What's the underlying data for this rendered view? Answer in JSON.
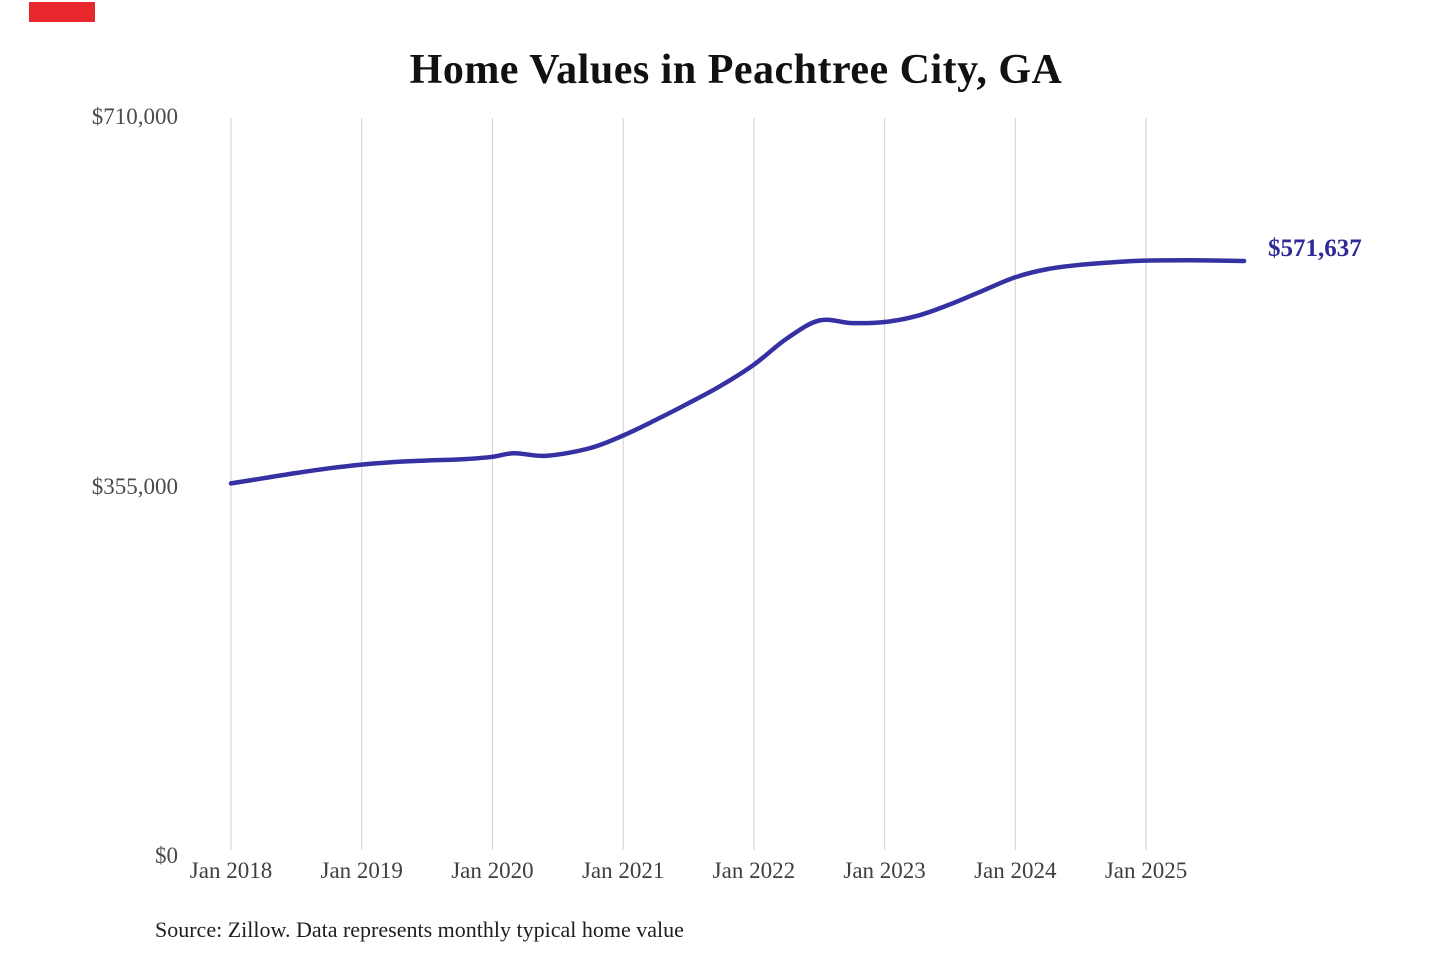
{
  "marker": {
    "color": "#e8282d"
  },
  "footer": {
    "source": "Source: Zillow. Data represents monthly typical home value"
  },
  "chart_data": {
    "type": "line",
    "title": "Home Values in Peachtree City, GA",
    "series_name": "Monthly typical home value",
    "xlabel": "",
    "ylabel": "",
    "ylim": [
      0,
      710000
    ],
    "y_ticks": [
      "$710,000",
      "$355,000",
      "$0"
    ],
    "y_tick_values": [
      710000,
      355000,
      0
    ],
    "x_ticks": [
      "Jan 2018",
      "Jan 2019",
      "Jan 2020",
      "Jan 2021",
      "Jan 2022",
      "Jan 2023",
      "Jan 2024",
      "Jan 2025"
    ],
    "grid": "vertical-only",
    "grid_color": "#cfcfcf",
    "legend": "none",
    "line_color": "#3531a3",
    "end_label": {
      "text": "$571,637",
      "value": 571637,
      "color": "#2e2b97"
    },
    "points": [
      {
        "date": "Jan 2018",
        "m": 0,
        "value": 358000
      },
      {
        "date": "Apr 2018",
        "m": 3,
        "value": 363000
      },
      {
        "date": "Jul 2018",
        "m": 6,
        "value": 368000
      },
      {
        "date": "Oct 2018",
        "m": 9,
        "value": 372500
      },
      {
        "date": "Jan 2019",
        "m": 12,
        "value": 376000
      },
      {
        "date": "Apr 2019",
        "m": 15,
        "value": 378500
      },
      {
        "date": "Jul 2019",
        "m": 18,
        "value": 380000
      },
      {
        "date": "Oct 2019",
        "m": 21,
        "value": 381000
      },
      {
        "date": "Jan 2020",
        "m": 24,
        "value": 383500
      },
      {
        "date": "Mar 2020",
        "m": 26,
        "value": 387000
      },
      {
        "date": "Jun 2020",
        "m": 29,
        "value": 384500
      },
      {
        "date": "Oct 2020",
        "m": 33,
        "value": 392000
      },
      {
        "date": "Jan 2021",
        "m": 36,
        "value": 404000
      },
      {
        "date": "Apr 2021",
        "m": 39,
        "value": 419000
      },
      {
        "date": "Jul 2021",
        "m": 42,
        "value": 435000
      },
      {
        "date": "Oct 2021",
        "m": 45,
        "value": 452000
      },
      {
        "date": "Jan 2022",
        "m": 48,
        "value": 472000
      },
      {
        "date": "Apr 2022",
        "m": 51,
        "value": 497000
      },
      {
        "date": "Jul 2022",
        "m": 54,
        "value": 514500
      },
      {
        "date": "Oct 2022",
        "m": 57,
        "value": 512000
      },
      {
        "date": "Jan 2023",
        "m": 60,
        "value": 513000
      },
      {
        "date": "Apr 2023",
        "m": 63,
        "value": 519000
      },
      {
        "date": "Jul 2023",
        "m": 66,
        "value": 530000
      },
      {
        "date": "Oct 2023",
        "m": 69,
        "value": 543000
      },
      {
        "date": "Jan 2024",
        "m": 72,
        "value": 556000
      },
      {
        "date": "Apr 2024",
        "m": 75,
        "value": 564000
      },
      {
        "date": "Jul 2024",
        "m": 78,
        "value": 568000
      },
      {
        "date": "Oct 2024",
        "m": 81,
        "value": 570500
      },
      {
        "date": "Jan 2025",
        "m": 84,
        "value": 572000
      },
      {
        "date": "May 2025",
        "m": 88,
        "value": 572300
      },
      {
        "date": "Sep 2025",
        "m": 93,
        "value": 571637
      }
    ]
  }
}
